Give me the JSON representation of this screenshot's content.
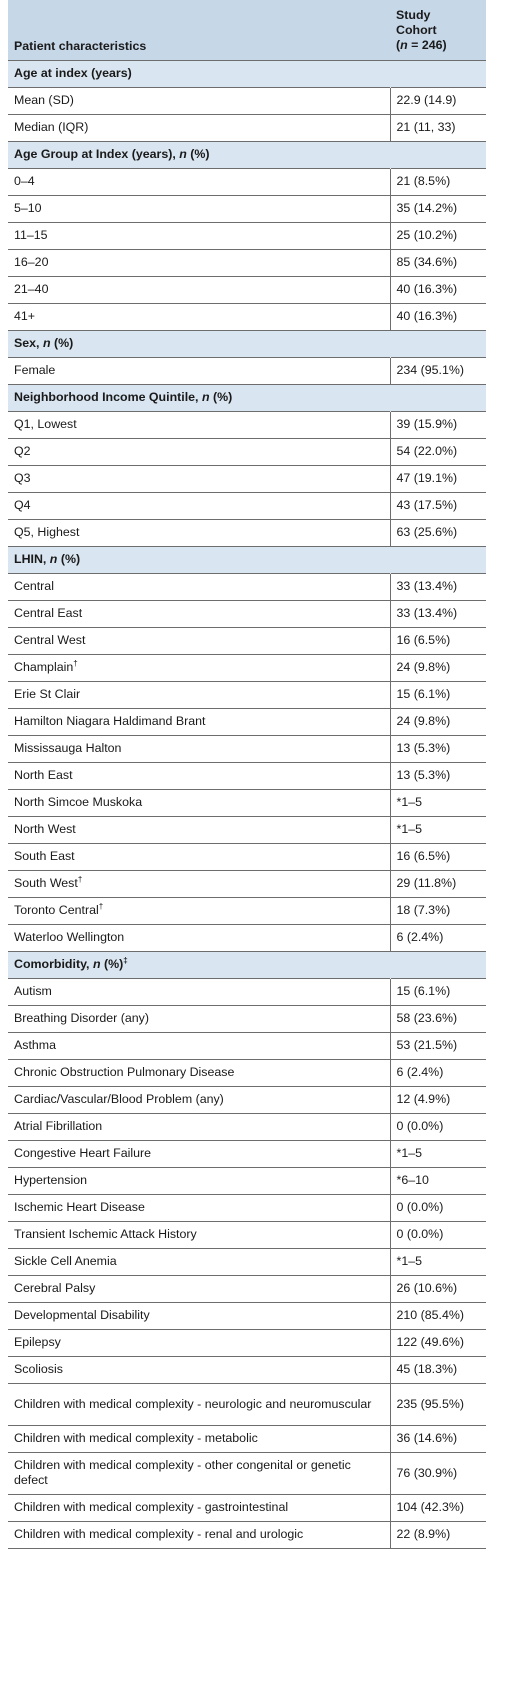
{
  "header": {
    "col1": "Patient characteristics",
    "col2_l1": "Study",
    "col2_l2": "Cohort",
    "col2_n_prefix": "(",
    "col2_n_var": "n",
    "col2_n_rest": " = 246)"
  },
  "sections": [
    {
      "title": "Age at index (years)",
      "title_n": "",
      "title_suffix": "",
      "title_sup": "",
      "rows": [
        {
          "label": "Mean (SD)",
          "value": "22.9 (14.9)"
        },
        {
          "label": "Median (IQR)",
          "value": "21 (11, 33)"
        }
      ]
    },
    {
      "title": "Age Group at Index (years), ",
      "title_n": "n",
      "title_suffix": " (%)",
      "title_sup": "",
      "rows": [
        {
          "label": "0–4",
          "value": "21 (8.5%)"
        },
        {
          "label": "5–10",
          "value": "35 (14.2%)"
        },
        {
          "label": "11–15",
          "value": "25 (10.2%)"
        },
        {
          "label": "16–20",
          "value": "85 (34.6%)"
        },
        {
          "label": "21–40",
          "value": "40 (16.3%)"
        },
        {
          "label": "41+",
          "value": "40 (16.3%)"
        }
      ]
    },
    {
      "title": "Sex, ",
      "title_n": "n",
      "title_suffix": " (%)",
      "title_sup": "",
      "rows": [
        {
          "label": "Female",
          "value": "234 (95.1%)"
        }
      ]
    },
    {
      "title": "Neighborhood Income Quintile, ",
      "title_n": "n",
      "title_suffix": " (%)",
      "title_sup": "",
      "rows": [
        {
          "label": "Q1, Lowest",
          "value": "39 (15.9%)"
        },
        {
          "label": "Q2",
          "value": "54 (22.0%)"
        },
        {
          "label": "Q3",
          "value": "47 (19.1%)"
        },
        {
          "label": "Q4",
          "value": "43 (17.5%)"
        },
        {
          "label": "Q5, Highest",
          "value": "63 (25.6%)"
        }
      ]
    },
    {
      "title": "LHIN, ",
      "title_n": "n",
      "title_suffix": " (%)",
      "title_sup": "",
      "rows": [
        {
          "label": "Central",
          "value": "33 (13.4%)"
        },
        {
          "label": "Central East",
          "value": "33 (13.4%)"
        },
        {
          "label": "Central West",
          "value": "16 (6.5%)"
        },
        {
          "label": "Champlain",
          "sup": "†",
          "value": "24 (9.8%)"
        },
        {
          "label": "Erie St Clair",
          "value": "15 (6.1%)"
        },
        {
          "label": "Hamilton Niagara Haldimand Brant",
          "value": "24 (9.8%)"
        },
        {
          "label": "Mississauga Halton",
          "value": "13 (5.3%)"
        },
        {
          "label": "North East",
          "value": "13 (5.3%)"
        },
        {
          "label": "North Simcoe Muskoka",
          "value": "*1–5"
        },
        {
          "label": "North West",
          "value": "*1–5"
        },
        {
          "label": "South East",
          "value": "16 (6.5%)"
        },
        {
          "label": "South West",
          "sup": "†",
          "value": "29 (11.8%)"
        },
        {
          "label": "Toronto Central",
          "sup": "†",
          "value": "18 (7.3%)"
        },
        {
          "label": "Waterloo Wellington",
          "value": "6 (2.4%)"
        }
      ]
    },
    {
      "title": "Comorbidity, ",
      "title_n": "n",
      "title_suffix": " (%)",
      "title_sup": "‡",
      "rows": [
        {
          "label": "Autism",
          "value": "15 (6.1%)"
        },
        {
          "label": "Breathing Disorder (any)",
          "value": "58 (23.6%)"
        },
        {
          "label": "Asthma",
          "value": "53 (21.5%)"
        },
        {
          "label": "Chronic Obstruction Pulmonary Disease",
          "value": "6 (2.4%)"
        },
        {
          "label": "Cardiac/Vascular/Blood Problem (any)",
          "value": "12 (4.9%)"
        },
        {
          "label": "Atrial Fibrillation",
          "value": "0 (0.0%)"
        },
        {
          "label": "Congestive Heart Failure",
          "value": "*1–5"
        },
        {
          "label": "Hypertension",
          "value": "*6–10"
        },
        {
          "label": "Ischemic Heart Disease",
          "value": "0 (0.0%)"
        },
        {
          "label": "Transient Ischemic Attack History",
          "value": "0 (0.0%)"
        },
        {
          "label": "Sickle Cell Anemia",
          "value": "*1–5"
        },
        {
          "label": "Cerebral Palsy",
          "value": "26 (10.6%)"
        },
        {
          "label": "Developmental Disability",
          "value": "210 (85.4%)"
        },
        {
          "label": "Epilepsy",
          "value": "122 (49.6%)"
        },
        {
          "label": "Scoliosis",
          "value": "45 (18.3%)"
        },
        {
          "label": "Children with medical complexity - neurologic and neuromuscular",
          "value": "235 (95.5%)",
          "tall": true
        },
        {
          "label": "Children with medical complexity - metabolic",
          "value": "36 (14.6%)"
        },
        {
          "label": "Children with medical complexity - other congenital or genetic defect",
          "value": "76 (30.9%)",
          "tall": true
        },
        {
          "label": "Children with medical complexity - gastrointestinal",
          "value": "104 (42.3%)"
        },
        {
          "label": "Children with medical complexity - renal and urologic",
          "value": "22 (8.9%)"
        }
      ]
    }
  ]
}
